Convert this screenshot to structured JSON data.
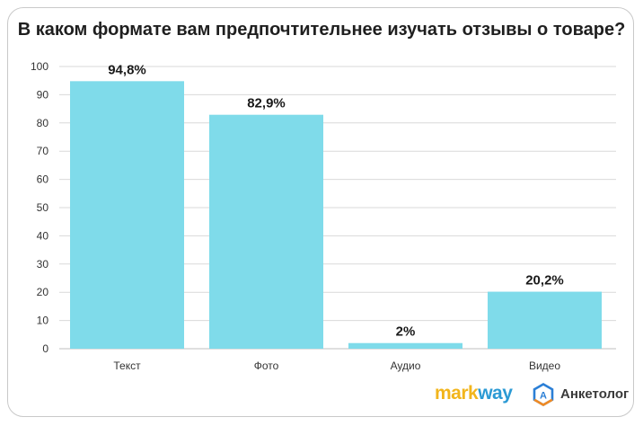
{
  "title": "В каком формате вам предпочтительнее изучать отзывы о товаре?",
  "chart_data": {
    "type": "bar",
    "title": "В каком формате вам предпочтительнее изучать отзывы о товаре?",
    "categories": [
      "Текст",
      "Фото",
      "Аудио",
      "Видео"
    ],
    "values": [
      94.8,
      82.9,
      2,
      20.2
    ],
    "data_labels": [
      "94,8%",
      "82,9%",
      "2%",
      "20,2%"
    ],
    "ylim": [
      0,
      100
    ],
    "yticks": [
      0,
      10,
      20,
      30,
      40,
      50,
      60,
      70,
      80,
      90,
      100
    ],
    "xlabel": "",
    "ylabel": "",
    "grid": true,
    "bar_color": "#7fdbea",
    "grid_color": "#d9d9d9"
  },
  "logos": {
    "markway_part1": "mark",
    "markway_part2": "way",
    "anketolog_text": "Анкетолог",
    "anketolog_icon_letter": "А",
    "anketolog_icon": "anketolog-logo-icon"
  }
}
